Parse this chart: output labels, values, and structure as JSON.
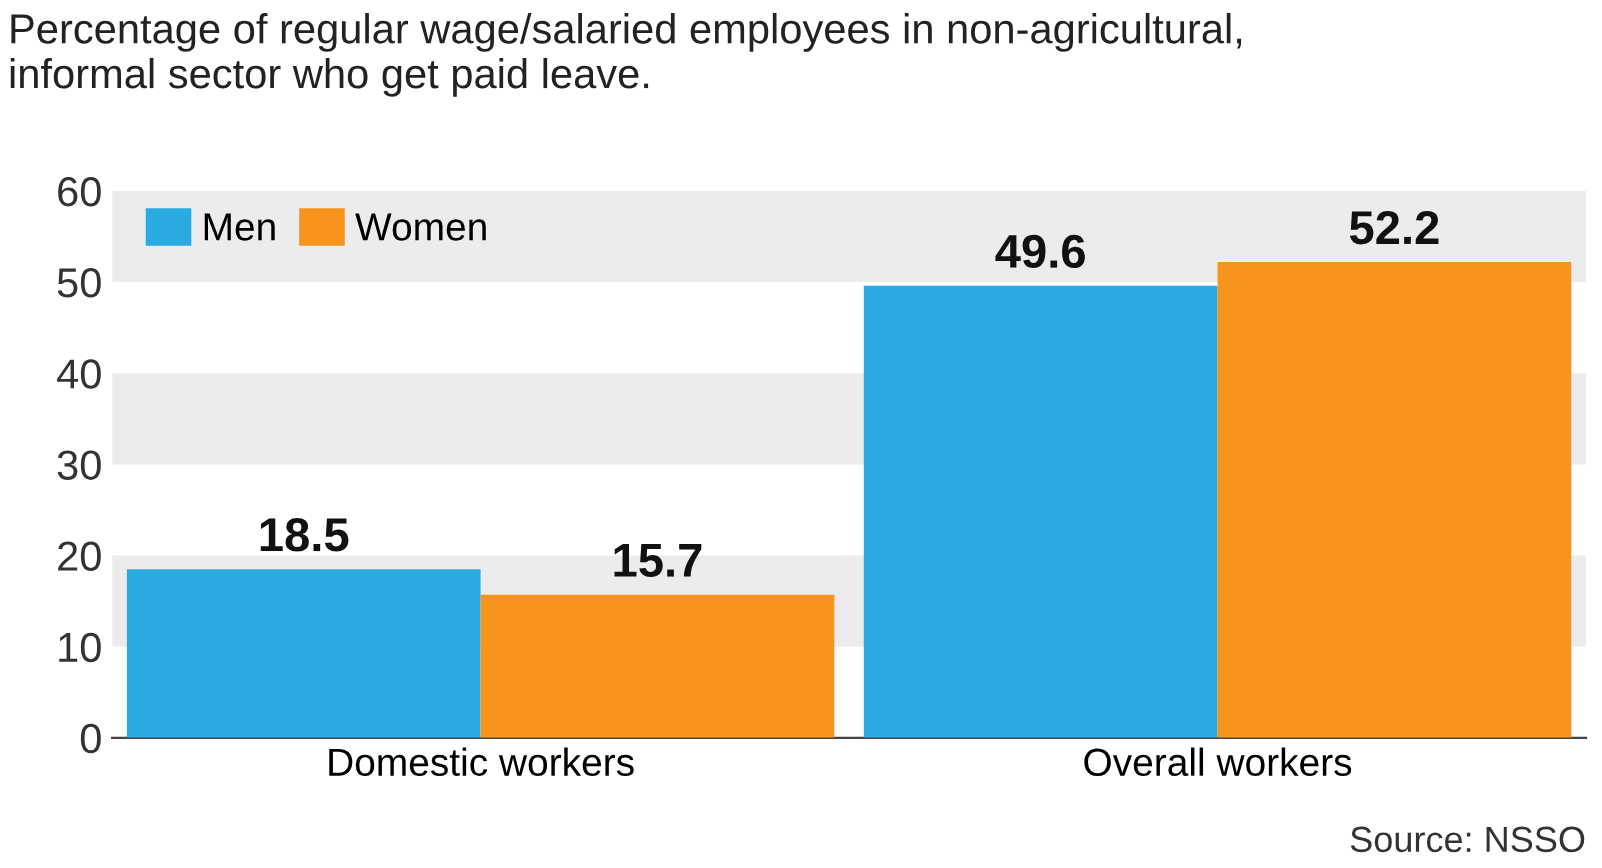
{
  "chart_data": {
    "type": "bar",
    "title": "Percentage of regular wage/salaried employees in non-agricultural,\ninformal sector who get paid leave.",
    "categories": [
      "Domestic workers",
      "Overall workers"
    ],
    "series": [
      {
        "name": "Men",
        "color": "#29abe2",
        "values": [
          18.5,
          49.6
        ]
      },
      {
        "name": "Women",
        "color": "#f7941d",
        "values": [
          15.7,
          52.2
        ]
      }
    ],
    "ylim": [
      0,
      60
    ],
    "yticks": [
      0,
      10,
      20,
      30,
      40,
      50,
      60
    ],
    "bands": [
      {
        "axis": "y",
        "from": 10,
        "to": 20,
        "color": "#ececec"
      },
      {
        "axis": "y",
        "from": 30,
        "to": 40,
        "color": "#ececec"
      },
      {
        "axis": "y",
        "from": 50,
        "to": 60,
        "color": "#ececec"
      }
    ],
    "legend": "top left",
    "data_labels": true,
    "annotations": [
      "Source: NSSO"
    ]
  }
}
